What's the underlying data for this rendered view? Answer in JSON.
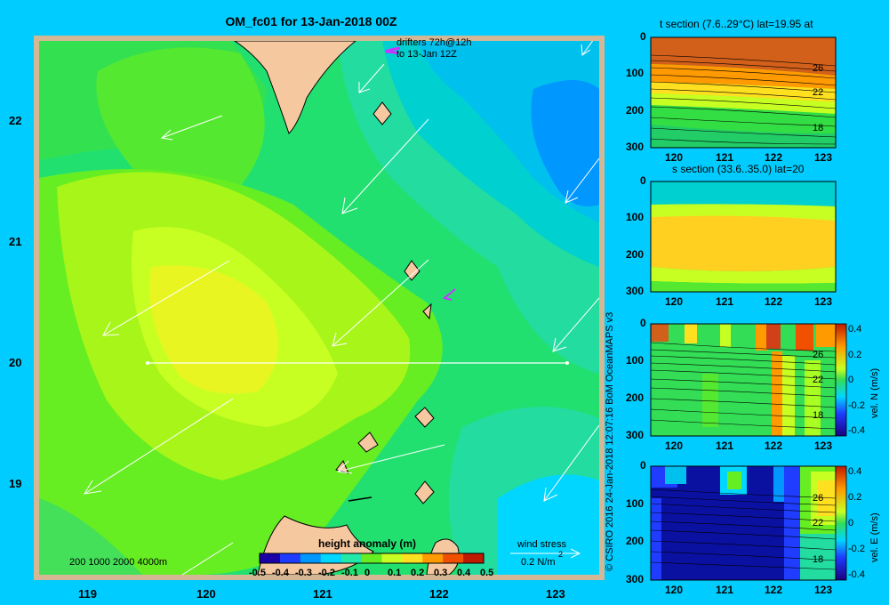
{
  "main_map": {
    "title": "OM_fc01 for 13-Jan-2018 00Z",
    "drifters_label_1": "drifters 72h@12h",
    "drifters_label_2": "to 13-Jan 12Z",
    "lat_ticks": [
      "22",
      "21",
      "20",
      "19"
    ],
    "lon_ticks": [
      "119",
      "120",
      "121",
      "122",
      "123"
    ],
    "depth_legend": "200  1000  2000  4000m",
    "wind_stress_label": "wind stress",
    "wind_stress_value": "0.2 N/m",
    "wind_stress_exp": "2",
    "colorbar_title": "height anomaly (m)",
    "colorbar_ticks": [
      "-0.5",
      "-0.4",
      "-0.3",
      "-0.2",
      "-0.1",
      "0",
      "0.1",
      "0.2",
      "0.3",
      "0.4",
      "0.5"
    ],
    "colorbar_colors": [
      "#1a00a6",
      "#1f3cff",
      "#0097ff",
      "#00d6ff",
      "#22e8a8",
      "#66ee22",
      "#c8ff22",
      "#ffe020",
      "#ff9a00",
      "#f05000",
      "#c01a00"
    ]
  },
  "credit": "© CSIRO 2016   24-Jan-2018 12:07:16 BoM OceanMAPS v3",
  "panels": [
    {
      "title": "t section (7.6..29°C) lat=19.95 at",
      "y_ticks": [
        "0",
        "100",
        "200",
        "300"
      ],
      "x_ticks": [
        "120",
        "121",
        "122",
        "123"
      ],
      "contour_labels": [
        "26",
        "22",
        "18"
      ]
    },
    {
      "title": "s section (33.6..35.0) lat=20",
      "y_ticks": [
        "0",
        "100",
        "200",
        "300"
      ],
      "x_ticks": [
        "120",
        "121",
        "122",
        "123"
      ]
    },
    {
      "title": "",
      "y_ticks": [
        "0",
        "100",
        "200",
        "300"
      ],
      "x_ticks": [
        "120",
        "121",
        "122",
        "123"
      ],
      "contour_labels": [
        "26",
        "22",
        "18"
      ],
      "cbar_label": "vel. N (m/s)",
      "cbar_ticks": [
        "0.4",
        "0.2",
        "0",
        "-0.2",
        "-0.4"
      ]
    },
    {
      "title": "",
      "y_ticks": [
        "0",
        "100",
        "200",
        "300"
      ],
      "x_ticks": [
        "120",
        "121",
        "122",
        "123"
      ],
      "contour_labels": [
        "26",
        "22",
        "18"
      ],
      "cbar_label": "vel. E (m/s)",
      "cbar_ticks": [
        "0.4",
        "0.2",
        "0",
        "-0.2",
        "-0.4"
      ]
    }
  ]
}
